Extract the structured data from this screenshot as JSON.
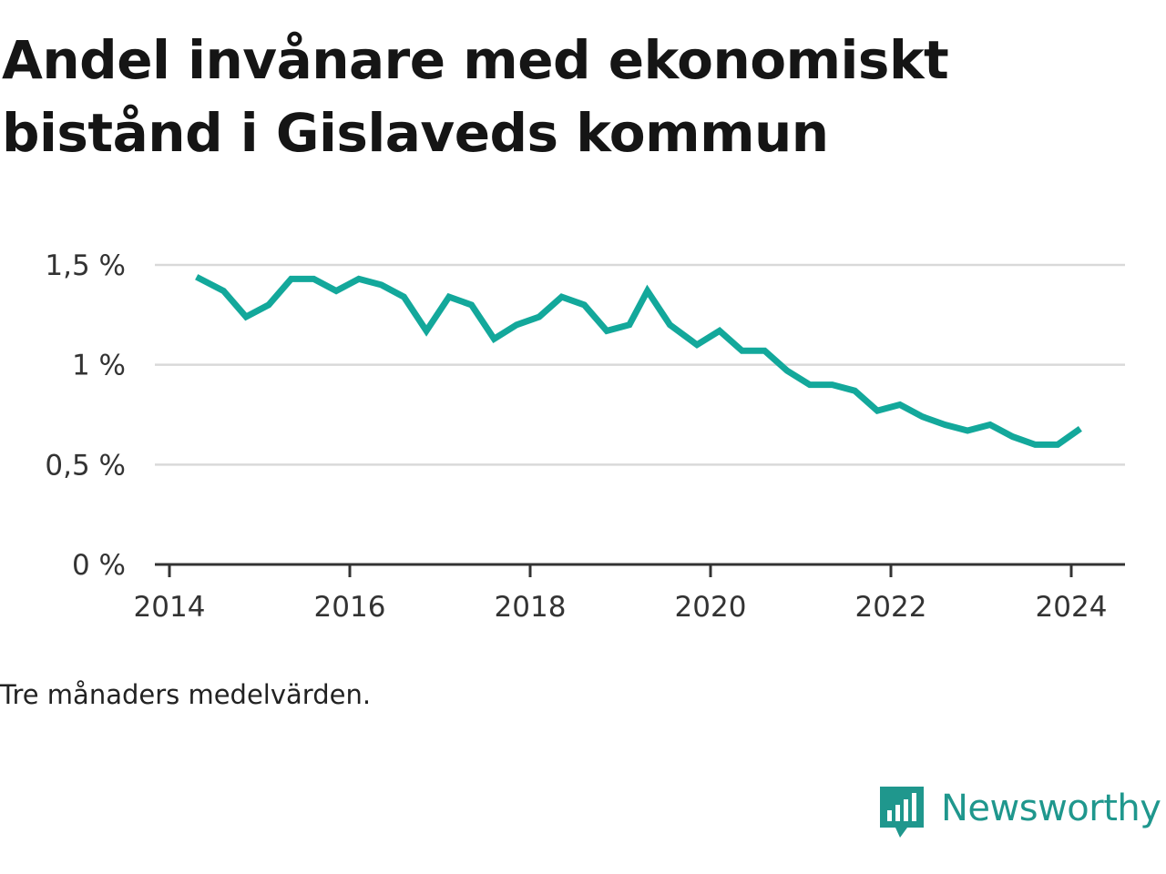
{
  "title": "Andel invånare med ekonomiskt bistånd i Gislaveds kommun",
  "note": "Tre månaders medelvärden.",
  "brand": {
    "name": "Newsworthy",
    "icon": "bar-chart-speech-bubble-icon",
    "color": "#1f978d"
  },
  "chart_data": {
    "type": "line",
    "title": "Andel invånare med ekonomiskt bistånd i Gislaveds kommun",
    "xlabel": "",
    "ylabel": "",
    "ylim": [
      0,
      1.5
    ],
    "xlim": [
      2014,
      2024.6
    ],
    "grid": true,
    "legend": "none",
    "line_color": "#13a89b",
    "y_ticks": [
      {
        "value": 0,
        "label": "0 %"
      },
      {
        "value": 0.5,
        "label": "0,5 %"
      },
      {
        "value": 1,
        "label": "1 %"
      },
      {
        "value": 1.5,
        "label": "1,5 %"
      }
    ],
    "x_ticks": [
      {
        "value": 2014,
        "label": "2014"
      },
      {
        "value": 2016,
        "label": "2016"
      },
      {
        "value": 2018,
        "label": "2018"
      },
      {
        "value": 2020,
        "label": "2020"
      },
      {
        "value": 2022,
        "label": "2022"
      },
      {
        "value": 2024,
        "label": "2024"
      }
    ],
    "series": [
      {
        "name": "",
        "x": [
          2014.3,
          2014.6,
          2014.85,
          2015.1,
          2015.35,
          2015.6,
          2015.85,
          2016.1,
          2016.35,
          2016.6,
          2016.85,
          2017.1,
          2017.35,
          2017.6,
          2017.85,
          2018.1,
          2018.35,
          2018.6,
          2018.85,
          2019.1,
          2019.3,
          2019.55,
          2019.85,
          2020.1,
          2020.35,
          2020.6,
          2020.85,
          2021.1,
          2021.35,
          2021.6,
          2021.85,
          2022.1,
          2022.35,
          2022.6,
          2022.85,
          2023.1,
          2023.35,
          2023.6,
          2023.85,
          2024.1
        ],
        "values": [
          1.44,
          1.37,
          1.24,
          1.3,
          1.43,
          1.43,
          1.37,
          1.43,
          1.4,
          1.34,
          1.17,
          1.34,
          1.3,
          1.13,
          1.2,
          1.24,
          1.34,
          1.3,
          1.17,
          1.2,
          1.37,
          1.2,
          1.1,
          1.17,
          1.07,
          1.07,
          0.97,
          0.9,
          0.9,
          0.87,
          0.77,
          0.8,
          0.74,
          0.7,
          0.67,
          0.7,
          0.64,
          0.6,
          0.6,
          0.68
        ]
      }
    ]
  }
}
